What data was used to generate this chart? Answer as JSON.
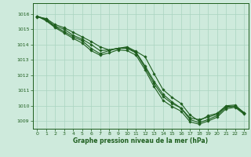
{
  "title": "Graphe pression niveau de la mer (hPa)",
  "bg_color": "#ceeadc",
  "grid_color": "#aad4c0",
  "line_color": "#1e5e1e",
  "marker_color": "#1e5e1e",
  "xlim": [
    -0.5,
    23.5
  ],
  "ylim": [
    1008.5,
    1016.7
  ],
  "yticks": [
    1009,
    1010,
    1011,
    1012,
    1013,
    1014,
    1015,
    1016
  ],
  "xticks": [
    0,
    1,
    2,
    3,
    4,
    5,
    6,
    7,
    8,
    9,
    10,
    11,
    12,
    13,
    14,
    15,
    16,
    17,
    18,
    19,
    20,
    21,
    22,
    23
  ],
  "series": [
    [
      1015.8,
      1015.7,
      1015.3,
      1015.1,
      1014.8,
      1014.5,
      1014.2,
      1013.85,
      1013.65,
      1013.75,
      1013.85,
      1013.55,
      1013.2,
      1012.1,
      1011.05,
      1010.55,
      1010.15,
      1009.4,
      1009.0,
      1009.35,
      1009.5,
      1010.0,
      1010.05,
      1009.55
    ],
    [
      1015.85,
      1015.65,
      1015.2,
      1015.0,
      1014.6,
      1014.35,
      1014.0,
      1013.6,
      1013.65,
      1013.75,
      1013.8,
      1013.5,
      1012.6,
      1011.6,
      1010.75,
      1010.25,
      1009.85,
      1009.2,
      1009.1,
      1009.25,
      1009.45,
      1009.95,
      1009.98,
      1009.55
    ],
    [
      1015.85,
      1015.6,
      1015.15,
      1014.85,
      1014.5,
      1014.25,
      1013.75,
      1013.4,
      1013.6,
      1013.75,
      1013.75,
      1013.45,
      1012.5,
      1011.45,
      1010.6,
      1010.15,
      1009.85,
      1009.1,
      1008.9,
      1009.1,
      1009.35,
      1009.9,
      1009.95,
      1009.5
    ],
    [
      1015.85,
      1015.55,
      1015.1,
      1014.75,
      1014.4,
      1014.1,
      1013.6,
      1013.3,
      1013.45,
      1013.65,
      1013.6,
      1013.3,
      1012.35,
      1011.25,
      1010.35,
      1009.95,
      1009.65,
      1008.95,
      1008.8,
      1009.0,
      1009.25,
      1009.8,
      1009.9,
      1009.45
    ]
  ]
}
